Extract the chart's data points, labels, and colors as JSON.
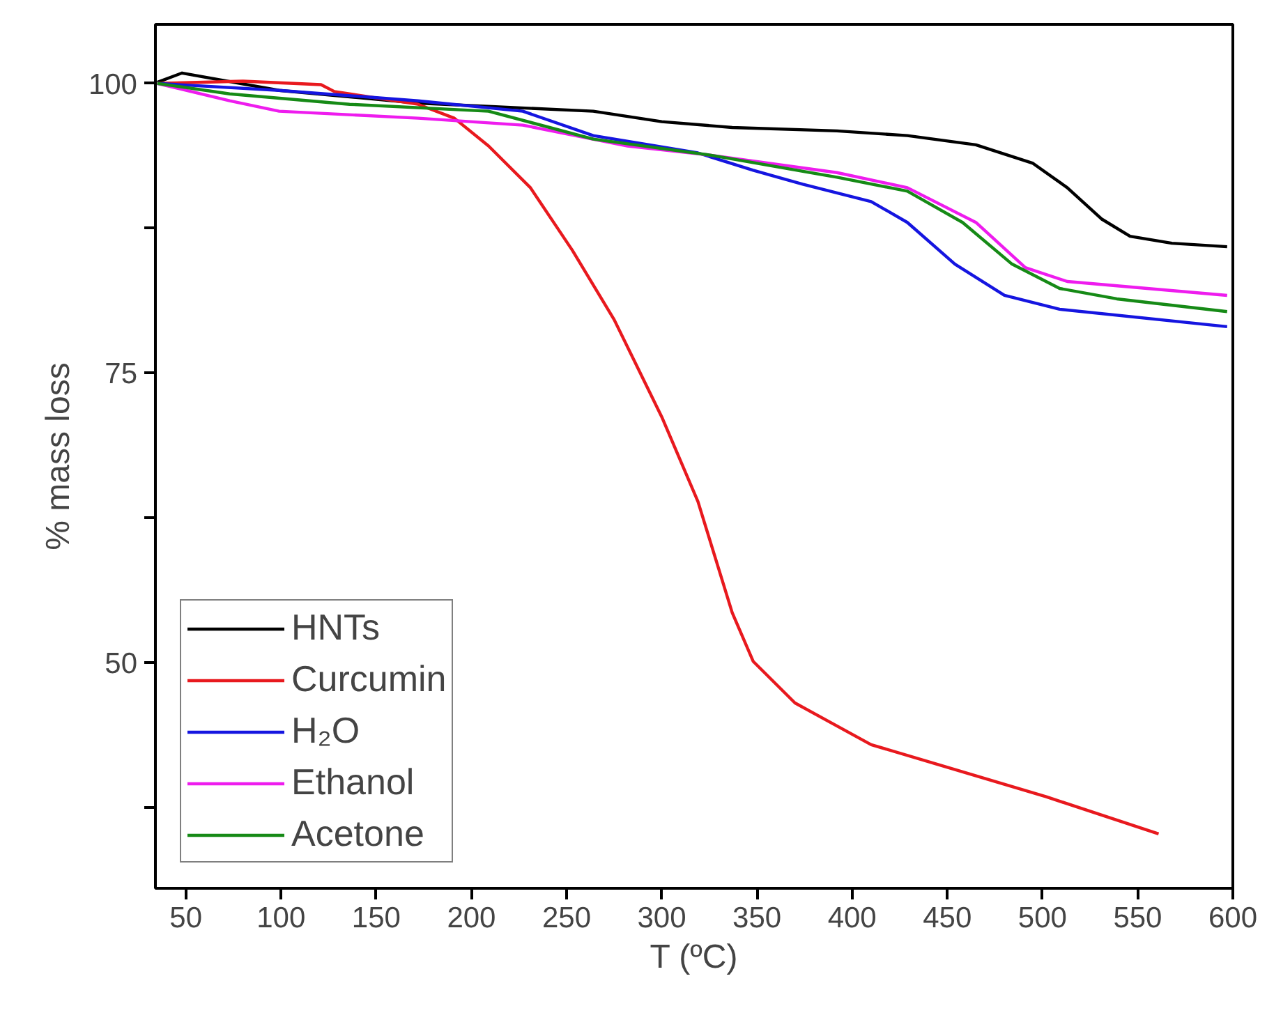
{
  "chart_data": {
    "type": "line",
    "xlabel": "T (ºC)",
    "ylabel": "% mass loss",
    "xlim": [
      34,
      600
    ],
    "ylim": [
      30.5,
      105.1
    ],
    "xticks": [
      50,
      100,
      150,
      200,
      250,
      300,
      350,
      400,
      450,
      500,
      550,
      600
    ],
    "yticks": [
      {
        "value": 37.5,
        "label": null
      },
      50,
      {
        "value": 62.5,
        "label": null
      },
      75,
      {
        "value": 87.5,
        "label": null
      },
      100
    ],
    "grid": false,
    "legend": "bottom left",
    "line_style": "solid",
    "marker": "none",
    "series": [
      {
        "name": "HNTs",
        "color": "#000000",
        "x": [
          35,
          48,
          99,
          172,
          264,
          300,
          337,
          392,
          429,
          465,
          495,
          513,
          531,
          546,
          568,
          597
        ],
        "values": [
          100.1,
          100.9,
          99.4,
          98.3,
          97.6,
          96.7,
          96.2,
          95.9,
          95.5,
          94.7,
          93.1,
          91.0,
          88.3,
          86.8,
          86.2,
          85.9
        ]
      },
      {
        "name": "Curcumin",
        "color": "#e8191e",
        "x": [
          35,
          80,
          121,
          128,
          172,
          191,
          209,
          231,
          253,
          275,
          300,
          319,
          337,
          348,
          370,
          410,
          447,
          502,
          561
        ],
        "values": [
          100,
          100.2,
          99.9,
          99.3,
          98.2,
          97.0,
          94.6,
          91.0,
          85.6,
          79.6,
          71.2,
          63.9,
          54.3,
          50.1,
          46.5,
          42.9,
          41.1,
          38.4,
          35.2
        ]
      },
      {
        "name": "H₂O",
        "color": "#1515e0",
        "x": [
          35,
          99,
          172,
          227,
          264,
          319,
          348,
          374,
          410,
          429,
          454,
          480,
          509,
          597
        ],
        "values": [
          100,
          99.4,
          98.5,
          97.6,
          95.5,
          94.0,
          92.5,
          91.3,
          89.8,
          88.0,
          84.4,
          81.7,
          80.5,
          79.0
        ]
      },
      {
        "name": "Ethanol",
        "color": "#ee1cee",
        "x": [
          35,
          73,
          99,
          172,
          227,
          282,
          326,
          392,
          429,
          465,
          491,
          513,
          597
        ],
        "values": [
          100,
          98.5,
          97.6,
          97.0,
          96.4,
          94.6,
          93.8,
          92.3,
          91.0,
          88.0,
          84.1,
          82.9,
          81.7
        ]
      },
      {
        "name": "Acetone",
        "color": "#168a16",
        "x": [
          35,
          73,
          136,
          209,
          264,
          326,
          392,
          429,
          458,
          484,
          509,
          539,
          597
        ],
        "values": [
          100,
          99.1,
          98.2,
          97.6,
          95.2,
          93.8,
          91.9,
          90.7,
          88.0,
          84.4,
          82.3,
          81.4,
          80.3
        ]
      }
    ]
  }
}
